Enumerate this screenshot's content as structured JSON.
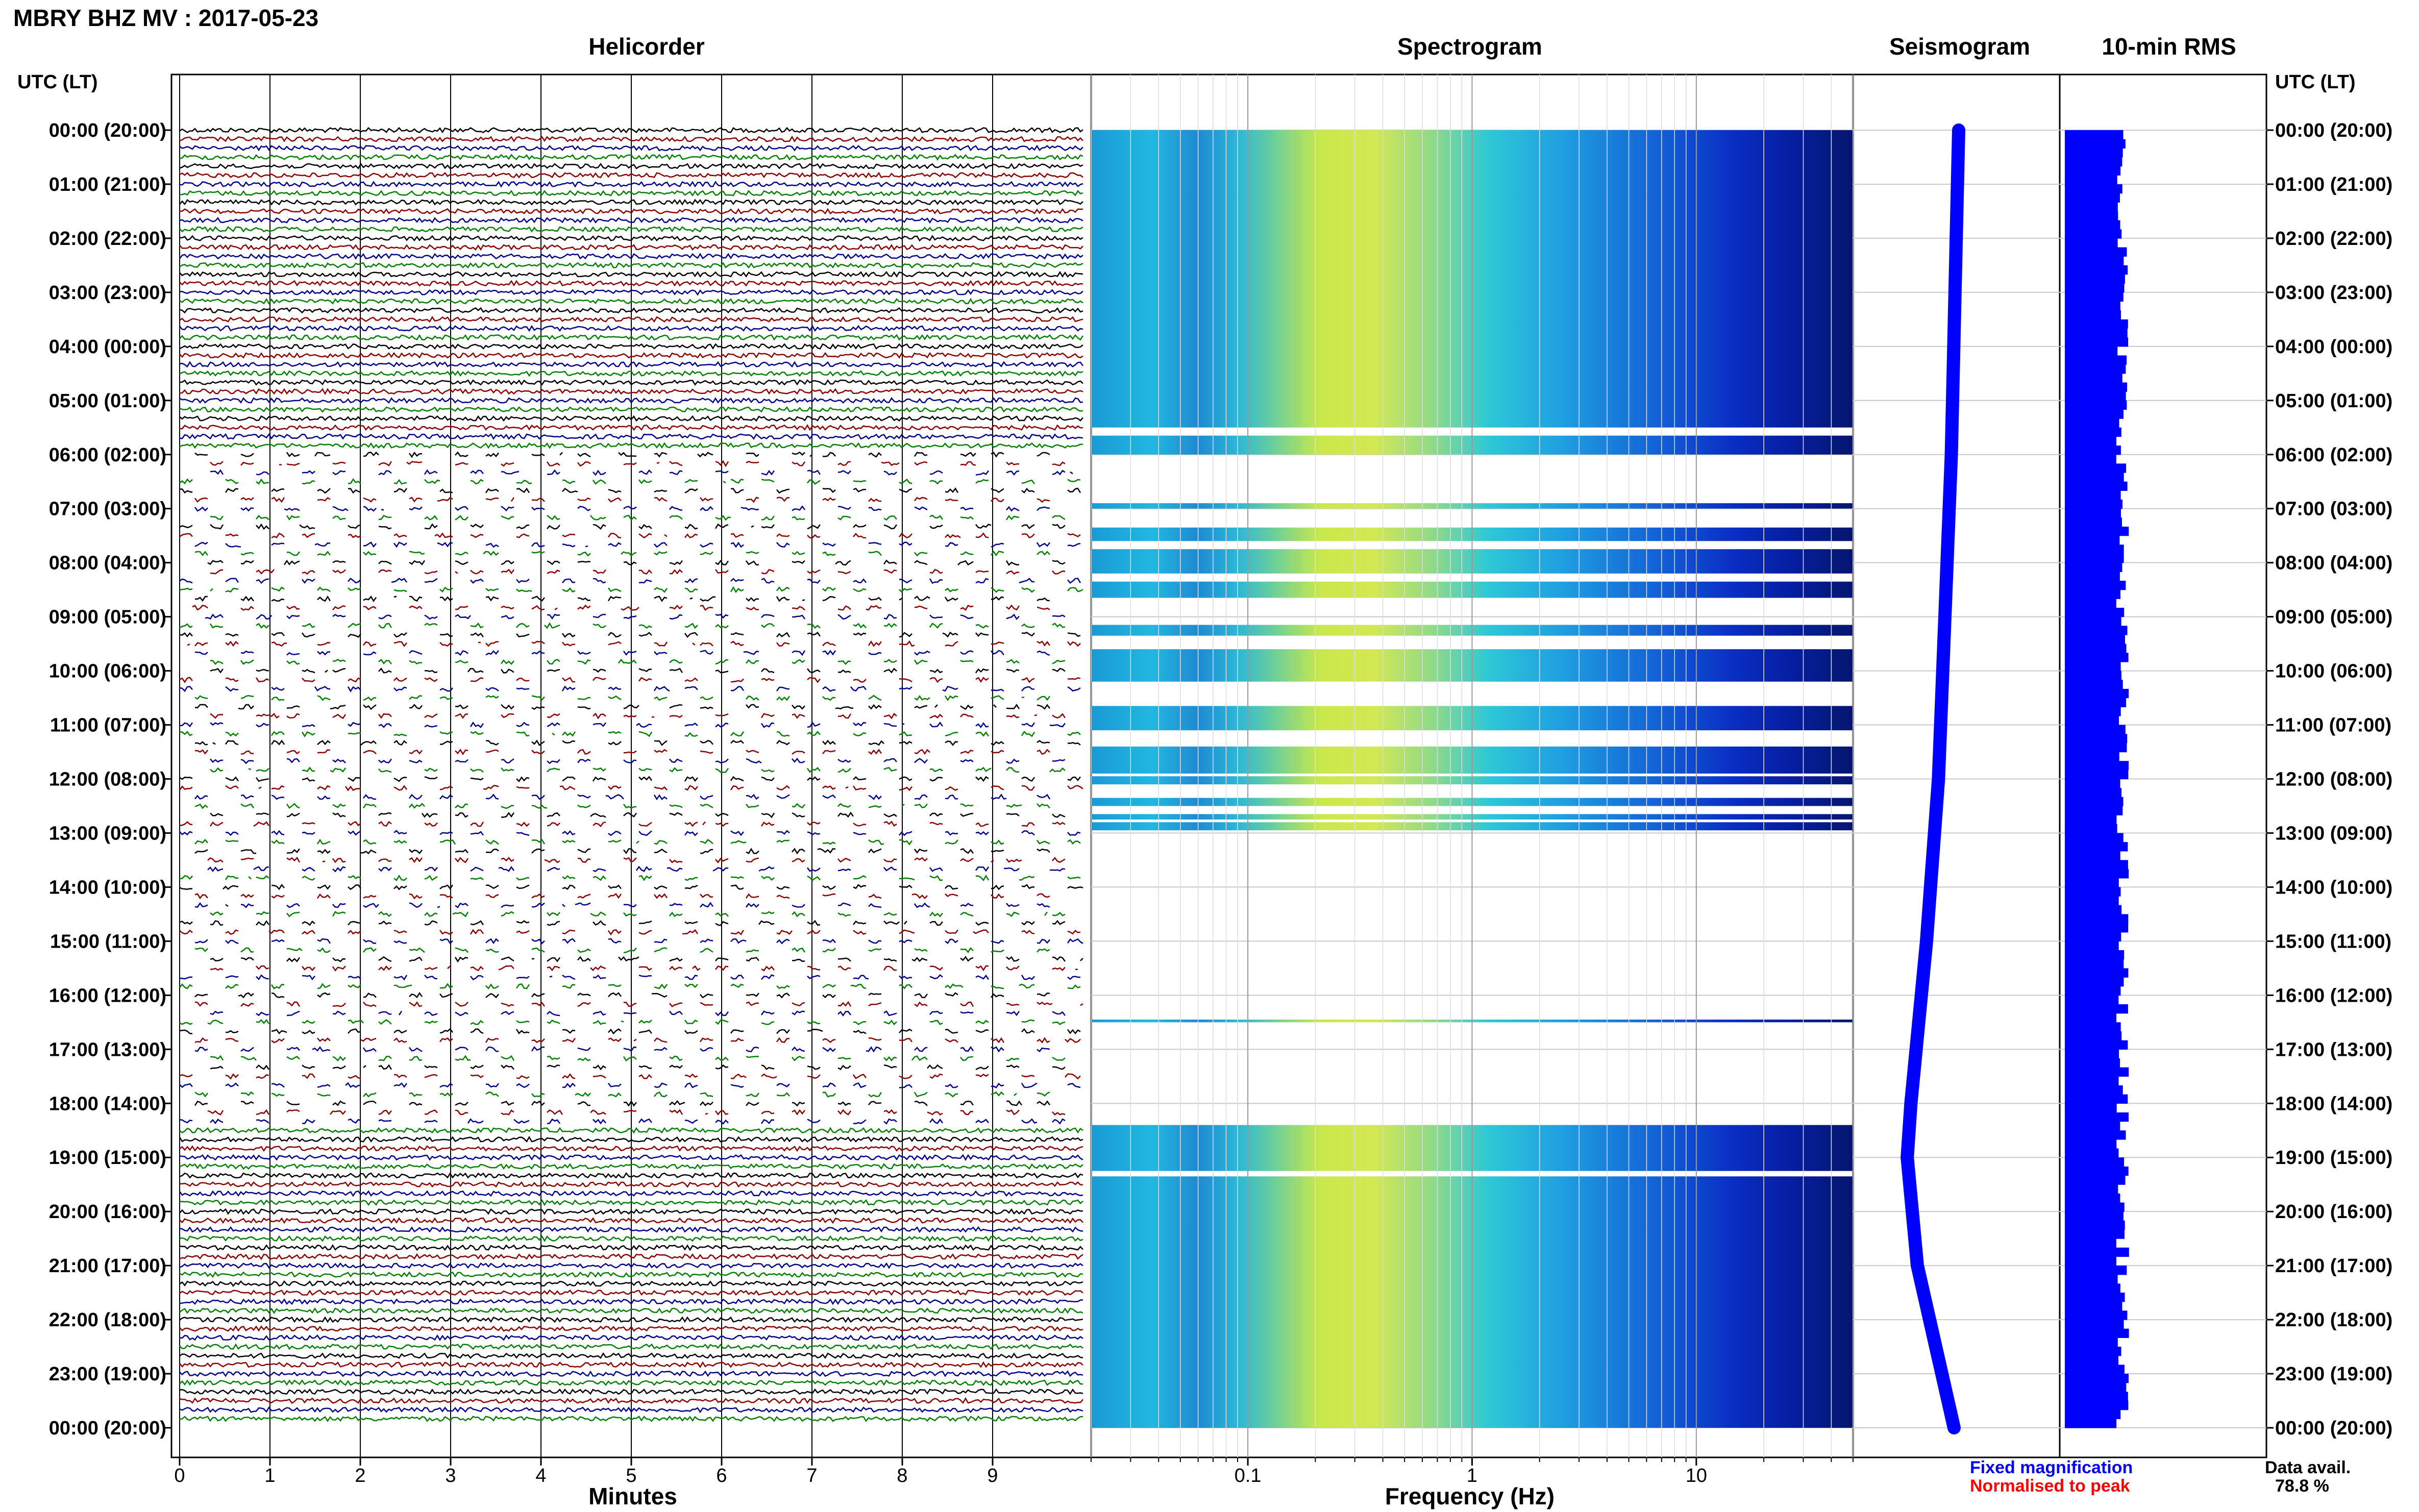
{
  "header": {
    "title": "MBRY BHZ MV : 2017-05-23",
    "panels": [
      "Helicorder",
      "Spectrogram",
      "Seismogram",
      "10-min RMS"
    ],
    "utc_head_left": "UTC (LT)",
    "utc_head_right": "UTC (LT)"
  },
  "time_labels": [
    "00:00 (20:00)",
    "01:00 (21:00)",
    "02:00 (22:00)",
    "03:00 (23:00)",
    "04:00 (00:00)",
    "05:00 (01:00)",
    "06:00 (02:00)",
    "07:00 (03:00)",
    "08:00 (04:00)",
    "09:00 (05:00)",
    "10:00 (06:00)",
    "11:00 (07:00)",
    "12:00 (08:00)",
    "13:00 (09:00)",
    "14:00 (10:00)",
    "15:00 (11:00)",
    "16:00 (12:00)",
    "17:00 (13:00)",
    "18:00 (14:00)",
    "19:00 (15:00)",
    "20:00 (16:00)",
    "21:00 (17:00)",
    "22:00 (18:00)",
    "23:00 (19:00)",
    "00:00 (20:00)"
  ],
  "footer": {
    "fixed_magnification": "Fixed magnification",
    "normalised_to_peak": "Normalised to peak",
    "data_avail_label": "Data avail.",
    "data_avail_value": "78.8 %"
  },
  "colors": {
    "trace_colors": [
      "#000000",
      "#8b0000",
      "#00008b",
      "#008000"
    ],
    "fixed_magnification": "#0000ff",
    "normalised_to_peak": "#ff0000",
    "rms_bar": "#0000ff"
  },
  "chart_data": [
    {
      "type": "line",
      "title": "Helicorder",
      "xlabel": "Minutes",
      "x_ticks": [
        "0",
        "1",
        "2",
        "3",
        "4",
        "5",
        "6",
        "7",
        "8",
        "9"
      ],
      "xlim": [
        0,
        10
      ],
      "trace_period_minutes": 10,
      "rows_per_hour": 6,
      "data_available_hours": [
        [
          0,
          6
        ],
        [
          18.5,
          24
        ]
      ],
      "partial_data_hours": [
        [
          6,
          18.5
        ]
      ]
    },
    {
      "type": "heatmap",
      "title": "Spectrogram",
      "xlabel": "Frequency (Hz)",
      "x_scale": "log",
      "x_ticks": [
        "0.1",
        "1",
        "10"
      ],
      "xlim": [
        0.02,
        50
      ],
      "data_available_hours": [
        [
          0,
          5.5
        ],
        [
          5.65,
          6
        ],
        [
          6.9,
          7.0
        ],
        [
          7.35,
          7.6
        ],
        [
          7.75,
          8.2
        ],
        [
          8.35,
          8.65
        ],
        [
          9.15,
          9.35
        ],
        [
          9.6,
          10.2
        ],
        [
          10.65,
          11.1
        ],
        [
          11.4,
          11.9
        ],
        [
          11.95,
          12.1
        ],
        [
          12.35,
          12.5
        ],
        [
          12.65,
          12.75
        ],
        [
          12.8,
          12.95
        ],
        [
          16.45,
          16.5
        ],
        [
          18.4,
          19.25
        ],
        [
          19.35,
          24
        ]
      ],
      "gap_hours": [
        [
          5.5,
          5.65
        ],
        [
          6.0,
          6.9
        ],
        [
          7.0,
          7.35
        ],
        [
          13.0,
          16.45
        ],
        [
          16.5,
          18.4
        ],
        [
          19.25,
          19.35
        ]
      ]
    },
    {
      "type": "line",
      "title": "Seismogram",
      "series": [
        {
          "name": "Fixed magnification",
          "hours": [
            0,
            3,
            6,
            9,
            12,
            15,
            18,
            19,
            21,
            24
          ],
          "offset": [
            0,
            0.04,
            0.08,
            0.15,
            0.22,
            0.35,
            0.52,
            0.56,
            0.45,
            0.05
          ]
        }
      ]
    },
    {
      "type": "bar",
      "title": "10-min RMS",
      "bins_per_hour": 6,
      "hours": 24,
      "relative_level_range": [
        0.8,
        1.0
      ]
    }
  ]
}
